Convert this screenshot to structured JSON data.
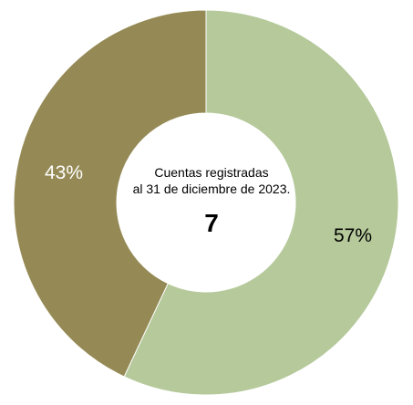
{
  "chart_data": {
    "type": "pie",
    "variant": "donut",
    "slices": [
      {
        "value": 57,
        "label": "57%",
        "color": "#b5c99b"
      },
      {
        "value": 43,
        "label": "43%",
        "color": "#958a55"
      }
    ],
    "center_text": {
      "line1": "Cuentas registradas",
      "line2": "al 31 de diciembre de 2023.",
      "count": "7"
    }
  }
}
